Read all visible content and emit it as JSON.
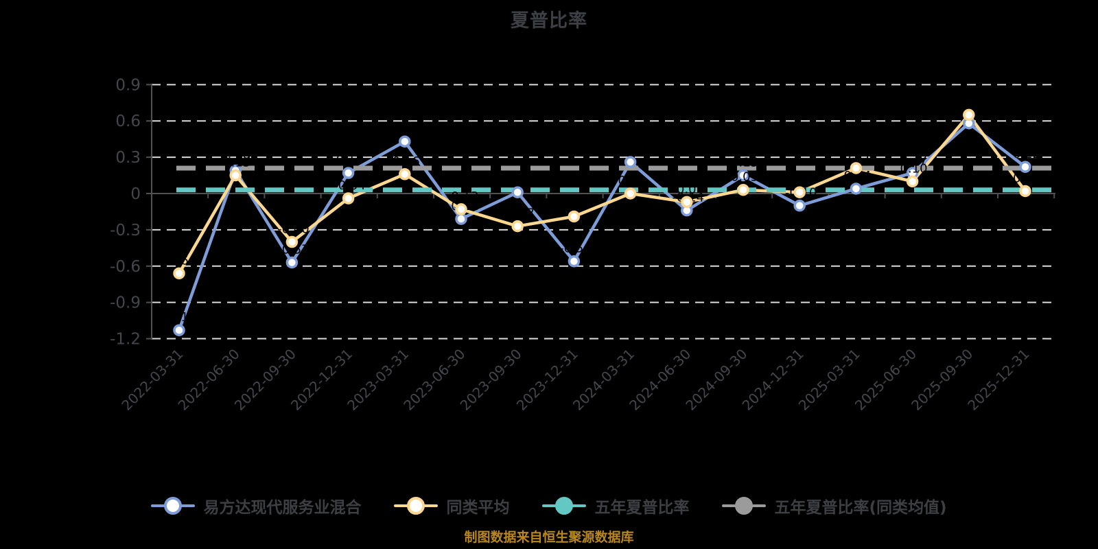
{
  "title": "夏普比率",
  "caption": "制图数据来自恒生聚源数据库",
  "colors": {
    "background": "#000000",
    "title_text": "#3c3f44",
    "axis_text": "#44464b",
    "grid_line": "#dcdcdc",
    "axis_line": "#515151",
    "point_label": "#000000",
    "marker_fill": "#ffffff",
    "legend_text": "#3d3f43",
    "caption_text": "#b9871c",
    "fund_blue": "#7e9dd8",
    "peer_yellow": "#fbd78f",
    "five_year_teal": "#63c8c3",
    "five_year_peer_gray": "#9b9b9b"
  },
  "legend": [
    {
      "label": "易方达现代服务业混合",
      "color": "#7e9dd8",
      "marker": "ring"
    },
    {
      "label": "同类平均",
      "color": "#fbd78f",
      "marker": "ring"
    },
    {
      "label": "五年夏普比率",
      "color": "#63c8c3",
      "marker": "solid"
    },
    {
      "label": "五年夏普比率(同类均值)",
      "color": "#9b9b9b",
      "marker": "solid"
    }
  ],
  "chart_data": {
    "type": "line",
    "title": "夏普比率",
    "xlabel": "",
    "ylabel": "",
    "ylim": [
      -1.2,
      0.9
    ],
    "yticks": [
      0.9,
      0.6,
      0.3,
      0,
      -0.3,
      -0.6,
      -0.9,
      -1.2
    ],
    "ytick_labels": [
      "0.9",
      "0.6",
      "0.3",
      "0",
      "-0.3",
      "-0.6",
      "-0.9",
      "-1.2"
    ],
    "grid": "horizontal-dashed-white",
    "legend_position": "bottom",
    "categories": [
      "2022-03-31",
      "2022-06-30",
      "2022-09-30",
      "2022-12-31",
      "2023-03-31",
      "2023-06-30",
      "2023-09-30",
      "2023-12-31",
      "2024-03-31",
      "2024-06-30",
      "2024-09-30",
      "2024-12-31",
      "2025-03-31",
      "2025-06-30",
      "2025-09-30",
      "2025-12-31"
    ],
    "series": [
      {
        "name": "易方达现代服务业混合",
        "style": "line",
        "color": "#7e9dd8",
        "values": [
          -1.13,
          0.19,
          -0.57,
          0.17,
          0.43,
          -0.21,
          0.01,
          -0.56,
          0.26,
          -0.14,
          0.15,
          -0.1,
          0.04,
          0.17,
          0.58,
          0.22
        ]
      },
      {
        "name": "同类平均",
        "style": "line",
        "color": "#fbd78f",
        "values": [
          -0.66,
          0.15,
          -0.4,
          -0.04,
          0.16,
          -0.13,
          -0.27,
          -0.19,
          0.0,
          -0.07,
          0.03,
          0.01,
          0.21,
          0.1,
          0.65,
          0.02
        ]
      },
      {
        "name": "五年夏普比率",
        "style": "dashed-constant",
        "color": "#63c8c3",
        "value": 0.03
      },
      {
        "name": "五年夏普比率(同类均值)",
        "style": "dashed-constant",
        "color": "#9b9b9b",
        "value": 0.21
      }
    ]
  }
}
